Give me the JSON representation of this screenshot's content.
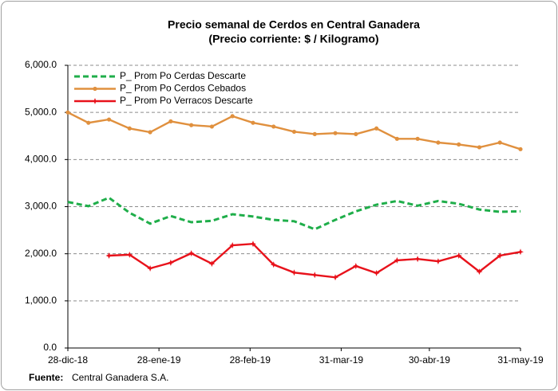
{
  "chart_data": {
    "type": "line",
    "title": "Precio semanal de Cerdos en Central Ganadera",
    "subtitle": "(Precio corriente: $ / Kilogramo)",
    "source_label": "Fuente:",
    "source": "Central Ganadera S.A.",
    "x": [
      "2018-12-28",
      "2019-01-04",
      "2019-01-11",
      "2019-01-18",
      "2019-01-25",
      "2019-02-01",
      "2019-02-08",
      "2019-02-15",
      "2019-02-22",
      "2019-03-01",
      "2019-03-08",
      "2019-03-15",
      "2019-03-22",
      "2019-03-29",
      "2019-04-05",
      "2019-04-12",
      "2019-04-19",
      "2019-04-26",
      "2019-05-03",
      "2019-05-10",
      "2019-05-17",
      "2019-05-24",
      "2019-05-31"
    ],
    "xlim": [
      "2018-12-28",
      "2019-05-31"
    ],
    "xticks": [
      {
        "value": "2018-12-28",
        "label": "28-dic-18"
      },
      {
        "value": "2019-01-28",
        "label": "28-ene-19"
      },
      {
        "value": "2019-02-28",
        "label": "28-feb-19"
      },
      {
        "value": "2019-03-31",
        "label": "31-mar-19"
      },
      {
        "value": "2019-04-30",
        "label": "30-abr-19"
      },
      {
        "value": "2019-05-31",
        "label": "31-may-19"
      }
    ],
    "ylim": [
      0,
      6000
    ],
    "yticks": [
      {
        "value": 0,
        "label": "0.0"
      },
      {
        "value": 1000,
        "label": "1,000.0"
      },
      {
        "value": 2000,
        "label": "2,000.0"
      },
      {
        "value": 3000,
        "label": "3,000.0"
      },
      {
        "value": 4000,
        "label": "4,000.0"
      },
      {
        "value": 5000,
        "label": "5,000.0"
      },
      {
        "value": 6000,
        "label": "6,000.0"
      }
    ],
    "grid": true,
    "legend": "upper-left",
    "series": [
      {
        "name": "P_ Prom Po Cerdas Descarte",
        "color": "#1fae4a",
        "line_style": "dashed",
        "marker": "none",
        "values": [
          3100,
          3010,
          3190,
          2870,
          2640,
          2800,
          2670,
          2700,
          2840,
          2790,
          2720,
          2690,
          2520,
          2720,
          2900,
          3040,
          3120,
          3020,
          3120,
          3060,
          2940,
          2890,
          2900
        ]
      },
      {
        "name": "P_ Prom Po Cerdos Cebados",
        "color": "#e0903e",
        "line_style": "solid",
        "marker": "circle",
        "values": [
          5000,
          4780,
          4850,
          4660,
          4580,
          4810,
          4730,
          4700,
          4920,
          4780,
          4700,
          4590,
          4540,
          4560,
          4540,
          4660,
          4440,
          4440,
          4360,
          4320,
          4260,
          4360,
          4220
        ]
      },
      {
        "name": "P_ Prom Po Verracos Descarte",
        "color": "#e8121b",
        "line_style": "solid",
        "marker": "star",
        "values": [
          null,
          null,
          1960,
          1980,
          1690,
          1810,
          2010,
          1790,
          2180,
          2210,
          1770,
          1600,
          1550,
          1500,
          1740,
          1590,
          1860,
          1890,
          1840,
          1960,
          1620,
          1960,
          2040
        ]
      }
    ]
  }
}
